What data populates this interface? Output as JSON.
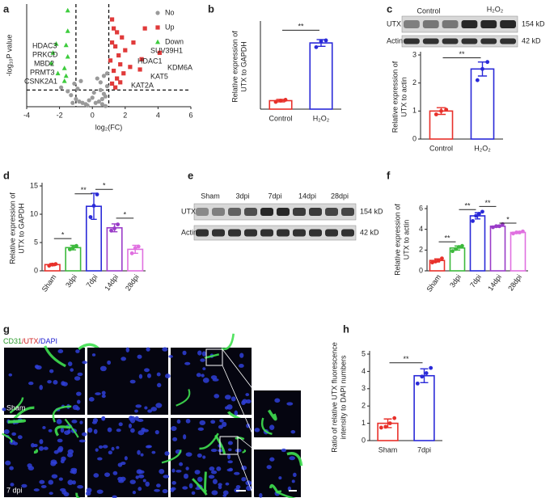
{
  "panels": [
    "a",
    "b",
    "c",
    "d",
    "e",
    "f",
    "g",
    "h"
  ],
  "chart_data": [
    {
      "type": "scatter",
      "xlabel": "log₂(FC)",
      "ylabel": "-log₁₀P value",
      "xlim": [
        -4,
        6
      ],
      "xticks": [
        -4,
        -2,
        0,
        2,
        4,
        6
      ],
      "ylim": [
        0,
        8
      ],
      "thresholds": {
        "x": [
          -1,
          1
        ],
        "y": 1.3
      },
      "legend": "upper right",
      "series": [
        {
          "name": "No",
          "color": "#9a9a9a",
          "marker": "circle",
          "x": [
            -1.9,
            -1.5,
            -1.3,
            -1.0,
            -0.8,
            -0.6,
            -0.4,
            -0.2,
            0,
            0.2,
            0.4,
            0.6,
            0.7,
            0.8,
            -1.1,
            -0.9,
            -0.7,
            0.3,
            0.5,
            0.9,
            0.1,
            -0.3,
            0.6,
            0.9,
            0.7,
            -1.2,
            0.8,
            0.5
          ],
          "y": [
            1.5,
            1.2,
            0.9,
            0.6,
            0.4,
            0.3,
            0.2,
            0.5,
            0.7,
            0.3,
            0.4,
            0.6,
            1.0,
            0.8,
            1.8,
            1.4,
            2.0,
            2.2,
            1.9,
            2.6,
            1.1,
            0.1,
            0.2,
            1.6,
            2.4,
            0.3,
            0.05,
            1.3
          ]
        },
        {
          "name": "Up",
          "color": "#e03a3a",
          "marker": "square",
          "x": [
            1.2,
            1.3,
            1.5,
            1.8,
            1.2,
            1.4,
            2.0,
            1.6,
            1.1,
            1.7,
            2.3,
            1.3,
            1.9,
            1.5,
            3.2,
            2.5,
            4.1,
            3.0,
            2.9,
            1.2,
            1.4,
            1.7
          ],
          "y": [
            6.8,
            6.1,
            5.8,
            5.4,
            5.0,
            4.7,
            4.4,
            4.0,
            3.6,
            3.3,
            3.1,
            2.8,
            2.6,
            2.2,
            6.1,
            5.0,
            4.2,
            3.7,
            2.9,
            1.8,
            1.5,
            1.9
          ]
        },
        {
          "name": "Down",
          "color": "#3ccc3c",
          "marker": "triangle",
          "x": [
            -1.5,
            -1.5,
            -1.6,
            -1.5,
            -1.7,
            -2.2,
            -2.4,
            -1.6,
            -2.1,
            -2.5,
            -1.7
          ],
          "y": [
            7.5,
            5.9,
            4.8,
            3.9,
            3.0,
            4.9,
            4.2,
            2.4,
            2.6,
            3.4,
            2.0
          ]
        }
      ],
      "annotations": [
        "HDAC3",
        "PRKCD",
        "MBD2",
        "PRMT3",
        "CSNK2A1",
        "SUV39H1",
        "HDAC1",
        "KDM6A",
        "KAT5",
        "KAT2A"
      ]
    },
    {
      "type": "bar",
      "ylabel": [
        "Relative expression of",
        "UTX to GAPDH"
      ],
      "ylim": [
        0,
        10
      ],
      "categories": [
        "Control",
        "H₂O₂"
      ],
      "colors": [
        "#e8302a",
        "#2a2ad8"
      ],
      "values": [
        1,
        7.8
      ],
      "errors": [
        0.15,
        0.4
      ],
      "points": [
        [
          0.85,
          1.0,
          1.1
        ],
        [
          7.3,
          8.0,
          8.1
        ]
      ],
      "annotations": [
        "**"
      ]
    },
    {
      "type": "bar",
      "ylabel": [
        "Relative expression of",
        "UTX to actin"
      ],
      "ylim": [
        0,
        3
      ],
      "yticks": [
        0,
        1,
        2,
        3
      ],
      "categories": [
        "Control",
        "H₂O₂"
      ],
      "colors": [
        "#e8302a",
        "#2a2ad8"
      ],
      "values": [
        1,
        2.5
      ],
      "errors": [
        0.12,
        0.25
      ],
      "points": [
        [
          0.88,
          1.0,
          1.05
        ],
        [
          2.1,
          2.5,
          2.75
        ]
      ],
      "annotations": [
        "**"
      ]
    },
    {
      "type": "bar",
      "ylabel": [
        "Relative expression of",
        "UTX to GAPDH"
      ],
      "ylim": [
        0,
        15
      ],
      "yticks": [
        0,
        5,
        10,
        15
      ],
      "categories": [
        "Sham",
        "3dpi",
        "7dpi",
        "14dpi",
        "28dpi"
      ],
      "colors": [
        "#e8302a",
        "#3cb93c",
        "#2a2ad8",
        "#9a3cc8",
        "#e070e0"
      ],
      "values": [
        1.1,
        4.1,
        11.4,
        7.6,
        3.8
      ],
      "errors": [
        0.2,
        0.4,
        2.3,
        0.7,
        0.7
      ],
      "points": [
        [
          0.9,
          1.1,
          1.2
        ],
        [
          3.8,
          4.1,
          4.4
        ],
        [
          9.5,
          11.5,
          13.5
        ],
        [
          7.1,
          7.5,
          8.2
        ],
        [
          3.1,
          4.0,
          4.3
        ]
      ],
      "annotations": [
        "*",
        "**",
        "*",
        "*"
      ]
    },
    {
      "type": "bar",
      "ylabel": [
        "Relative expression of",
        "UTX to actin"
      ],
      "ylim": [
        0,
        6
      ],
      "yticks": [
        0,
        2,
        4,
        6
      ],
      "categories": [
        "Sham",
        "3dpi",
        "7dpi",
        "14dpi",
        "28dpi"
      ],
      "colors": [
        "#e8302a",
        "#3cb93c",
        "#2a2ad8",
        "#9a3cc8",
        "#e070e0"
      ],
      "values": [
        1.0,
        2.2,
        5.3,
        4.3,
        3.7
      ],
      "errors": [
        0.15,
        0.2,
        0.3,
        0.1,
        0.1
      ],
      "points": [
        [
          0.8,
          0.9,
          1.0,
          1.2
        ],
        [
          1.9,
          2.1,
          2.3,
          2.4
        ],
        [
          4.8,
          5.3,
          5.5,
          5.7
        ],
        [
          4.2,
          4.3,
          4.3,
          4.5
        ],
        [
          3.6,
          3.7,
          3.7,
          3.8
        ]
      ],
      "annotations": [
        "**",
        "**",
        "**",
        "*"
      ]
    },
    {
      "type": "bar",
      "ylabel": [
        "Ratio of relative UTX fluorescence",
        "intensity to DAPI numbers"
      ],
      "ylim": [
        0,
        5
      ],
      "yticks": [
        0,
        1,
        2,
        3,
        4,
        5
      ],
      "categories": [
        "Sham",
        "7dpi"
      ],
      "colors": [
        "#e8302a",
        "#2a2ad8"
      ],
      "values": [
        1.0,
        3.75
      ],
      "errors": [
        0.25,
        0.4
      ],
      "points": [
        [
          0.75,
          0.8,
          1.0,
          1.3
        ],
        [
          3.3,
          3.7,
          3.9,
          4.2
        ]
      ],
      "annotations": [
        "**"
      ]
    }
  ],
  "blots": [
    {
      "groups": [
        "Control",
        "H₂O₂"
      ],
      "bands": [
        "UTX",
        "Actin"
      ],
      "sizes": [
        "154 kD",
        "42 kD"
      ]
    },
    {
      "lanes": [
        "Sham",
        "3dpi",
        "7dpi",
        "14dpi",
        "28dpi"
      ],
      "bands": [
        "UTX",
        "Actin"
      ],
      "sizes": [
        "154 kD",
        "42 kD"
      ]
    }
  ],
  "micrograph": {
    "stain": [
      "CD31",
      "/UTX",
      "/DAPI"
    ],
    "rows": [
      "Sham",
      "7 dpi"
    ]
  }
}
